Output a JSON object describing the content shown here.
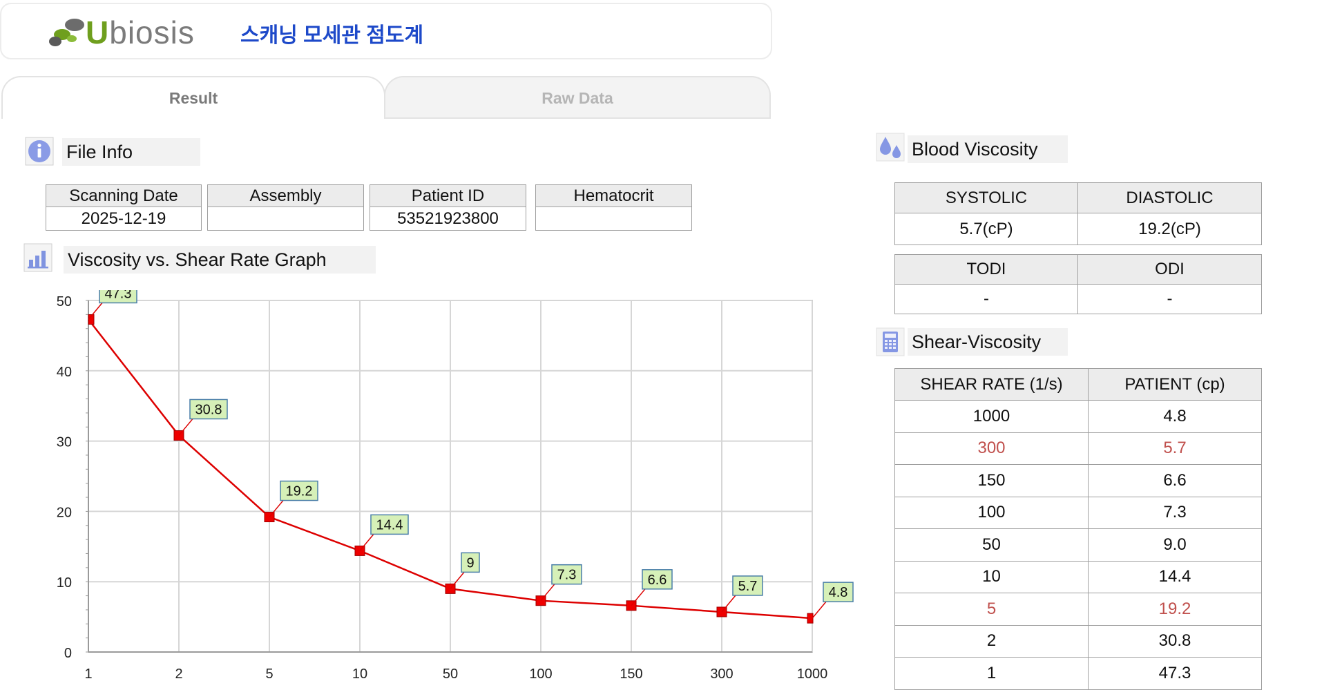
{
  "header": {
    "logo_text_u": "U",
    "logo_text_rest": "biosis",
    "title": "스캐닝 모세관 점도계"
  },
  "tabs": [
    {
      "label": "Result"
    },
    {
      "label": "Raw Data"
    }
  ],
  "file_info": {
    "title": "File Info",
    "icon": "info-icon",
    "headers": [
      "Scanning Date",
      "Assembly",
      "Patient ID",
      "Hematocrit"
    ],
    "values": [
      "2025-12-19",
      "",
      "53521923800",
      ""
    ]
  },
  "graph": {
    "title": "Viscosity vs. Shear Rate Graph",
    "icon": "bar-chart-icon"
  },
  "chart_data": {
    "type": "line",
    "title": "",
    "xlabel": "",
    "ylabel": "",
    "categories": [
      "1",
      "2",
      "5",
      "10",
      "50",
      "100",
      "150",
      "300",
      "1000"
    ],
    "series": [
      {
        "values": [
          47.3,
          30.8,
          19.2,
          14.4,
          9,
          7.3,
          6.6,
          5.7,
          4.8
        ]
      }
    ],
    "data_labels": [
      "47.3",
      "30.8",
      "19.2",
      "14.4",
      "9",
      "7.3",
      "6.6",
      "5.7",
      "4.8"
    ],
    "ylim": [
      0,
      50
    ],
    "yticks": [
      "0",
      "10",
      "20",
      "30",
      "40",
      "50"
    ],
    "grid": true,
    "colors": {
      "line": "#dd0000",
      "marker": "#ee0000",
      "label_bg": "#d6f0b8",
      "label_border": "#4a7fa8"
    }
  },
  "blood_viscosity": {
    "title": "Blood Viscosity",
    "icon": "blood-drop-icon",
    "row1_headers": [
      "SYSTOLIC",
      "DIASTOLIC"
    ],
    "row1_values": [
      "5.7(cP)",
      "19.2(cP)"
    ],
    "row2_headers": [
      "TODI",
      "ODI"
    ],
    "row2_values": [
      "-",
      "-"
    ]
  },
  "shear_viscosity": {
    "title": "Shear-Viscosity",
    "icon": "calculator-icon",
    "headers": [
      "SHEAR RATE (1/s)",
      "PATIENT (cp)"
    ],
    "rows": [
      [
        "1000",
        "4.8"
      ],
      [
        "300",
        "5.7"
      ],
      [
        "150",
        "6.6"
      ],
      [
        "100",
        "7.3"
      ],
      [
        "50",
        "9.0"
      ],
      [
        "10",
        "14.4"
      ],
      [
        "5",
        "19.2"
      ],
      [
        "2",
        "30.8"
      ],
      [
        "1",
        "47.3"
      ]
    ],
    "highlight_color": "#c0504d"
  }
}
